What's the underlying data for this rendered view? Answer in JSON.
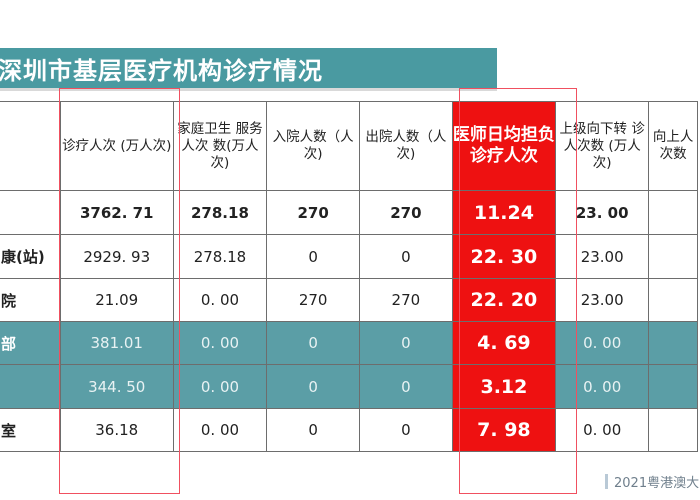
{
  "slide": {
    "title": "深圳市基层医疗机构诊疗情况",
    "footer": "2021粤港澳大"
  },
  "colors": {
    "title_bar": "#4a9aa1",
    "teal_row": "#5b9ea6",
    "highlight": "#ee1111",
    "frame_line": "#f05060"
  },
  "table": {
    "headers": [
      "",
      "诊疗人次 (万人次)",
      "家庭卫生 服务人次 数(万人次)",
      "入院人数（人次)",
      "出院人数（人次)",
      "医师日均担负诊疗人次",
      "上级向下转 诊人次数 (万人次)",
      "向上人次数"
    ],
    "rows": [
      {
        "name": "",
        "cells": [
          "3762. 71",
          "278.18",
          "270",
          "270",
          "11.24",
          "23. 00",
          ""
        ]
      },
      {
        "name": "康(站)",
        "cells": [
          "2929. 93",
          "278.18",
          "0",
          "0",
          "22. 30",
          "23.00",
          ""
        ]
      },
      {
        "name": "院",
        "cells": [
          "21.09",
          "0. 00",
          "270",
          "270",
          "22. 20",
          "23.00",
          ""
        ]
      },
      {
        "name": "部",
        "cells": [
          "381.01",
          "0. 00",
          "0",
          "0",
          "4. 69",
          "0. 00",
          ""
        ]
      },
      {
        "name": "",
        "cells": [
          "344. 50",
          "0. 00",
          "0",
          "0",
          "3.12",
          "0. 00",
          ""
        ]
      },
      {
        "name": "室",
        "cells": [
          "36.18",
          "0. 00",
          "0",
          "0",
          "7. 98",
          "0. 00",
          ""
        ]
      }
    ]
  }
}
